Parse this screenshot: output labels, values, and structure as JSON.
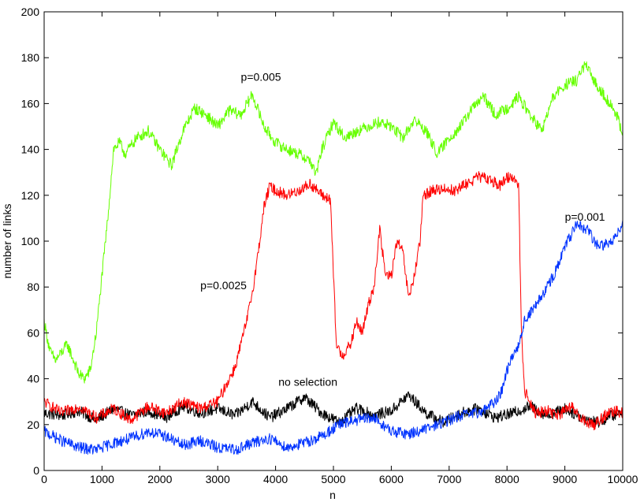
{
  "chart_data": {
    "type": "line",
    "title": "",
    "xlabel": "n",
    "ylabel": "number of links",
    "xlim": [
      0,
      10000
    ],
    "ylim": [
      0,
      200
    ],
    "xticks": [
      0,
      1000,
      2000,
      3000,
      4000,
      5000,
      6000,
      7000,
      8000,
      9000,
      10000
    ],
    "yticks": [
      0,
      20,
      40,
      60,
      80,
      100,
      120,
      140,
      160,
      180,
      200
    ],
    "grid": false,
    "legend": "none",
    "series": [
      {
        "name": "no selection",
        "color": "#000000",
        "points": [
          [
            0,
            25
          ],
          [
            300,
            24
          ],
          [
            600,
            26
          ],
          [
            900,
            22
          ],
          [
            1200,
            27
          ],
          [
            1500,
            24
          ],
          [
            1800,
            26
          ],
          [
            2100,
            23
          ],
          [
            2400,
            28
          ],
          [
            2700,
            25
          ],
          [
            3000,
            27
          ],
          [
            3300,
            24
          ],
          [
            3600,
            30
          ],
          [
            3900,
            23
          ],
          [
            4200,
            27
          ],
          [
            4500,
            32
          ],
          [
            4800,
            25
          ],
          [
            5100,
            21
          ],
          [
            5400,
            27
          ],
          [
            5700,
            24
          ],
          [
            6000,
            26
          ],
          [
            6300,
            33
          ],
          [
            6600,
            25
          ],
          [
            6900,
            21
          ],
          [
            7200,
            25
          ],
          [
            7500,
            27
          ],
          [
            7800,
            23
          ],
          [
            8100,
            25
          ],
          [
            8400,
            28
          ],
          [
            8700,
            24
          ],
          [
            9000,
            27
          ],
          [
            9300,
            23
          ],
          [
            9600,
            21
          ],
          [
            9800,
            24
          ],
          [
            10000,
            25
          ]
        ]
      },
      {
        "name": "p=0.005",
        "color": "#66ff00",
        "points": [
          [
            0,
            65
          ],
          [
            100,
            52
          ],
          [
            200,
            48
          ],
          [
            400,
            55
          ],
          [
            600,
            42
          ],
          [
            700,
            40
          ],
          [
            800,
            44
          ],
          [
            900,
            60
          ],
          [
            1000,
            85
          ],
          [
            1100,
            110
          ],
          [
            1200,
            140
          ],
          [
            1300,
            143
          ],
          [
            1400,
            138
          ],
          [
            1600,
            145
          ],
          [
            1800,
            148
          ],
          [
            2000,
            140
          ],
          [
            2200,
            133
          ],
          [
            2400,
            148
          ],
          [
            2600,
            158
          ],
          [
            2800,
            155
          ],
          [
            3000,
            150
          ],
          [
            3200,
            157
          ],
          [
            3400,
            155
          ],
          [
            3600,
            164
          ],
          [
            3800,
            150
          ],
          [
            4000,
            143
          ],
          [
            4200,
            140
          ],
          [
            4400,
            138
          ],
          [
            4600,
            135
          ],
          [
            4700,
            129
          ],
          [
            4800,
            140
          ],
          [
            5000,
            152
          ],
          [
            5200,
            145
          ],
          [
            5400,
            148
          ],
          [
            5600,
            150
          ],
          [
            5800,
            152
          ],
          [
            6000,
            150
          ],
          [
            6200,
            145
          ],
          [
            6400,
            153
          ],
          [
            6600,
            148
          ],
          [
            6800,
            138
          ],
          [
            7000,
            145
          ],
          [
            7200,
            150
          ],
          [
            7400,
            158
          ],
          [
            7600,
            163
          ],
          [
            7800,
            155
          ],
          [
            8000,
            158
          ],
          [
            8200,
            163
          ],
          [
            8400,
            155
          ],
          [
            8600,
            148
          ],
          [
            8800,
            163
          ],
          [
            9000,
            168
          ],
          [
            9200,
            170
          ],
          [
            9350,
            177
          ],
          [
            9500,
            170
          ],
          [
            9700,
            163
          ],
          [
            9900,
            155
          ],
          [
            10000,
            145
          ]
        ]
      },
      {
        "name": "p=0.0025",
        "color": "#ff0000",
        "points": [
          [
            0,
            30
          ],
          [
            300,
            25
          ],
          [
            600,
            28
          ],
          [
            900,
            23
          ],
          [
            1200,
            27
          ],
          [
            1500,
            22
          ],
          [
            1800,
            28
          ],
          [
            2100,
            25
          ],
          [
            2400,
            30
          ],
          [
            2700,
            27
          ],
          [
            3000,
            30
          ],
          [
            3100,
            35
          ],
          [
            3300,
            45
          ],
          [
            3500,
            65
          ],
          [
            3600,
            78
          ],
          [
            3700,
            95
          ],
          [
            3800,
            115
          ],
          [
            3900,
            124
          ],
          [
            4000,
            122
          ],
          [
            4200,
            120
          ],
          [
            4400,
            122
          ],
          [
            4600,
            125
          ],
          [
            4800,
            120
          ],
          [
            4950,
            118
          ],
          [
            5000,
            85
          ],
          [
            5050,
            55
          ],
          [
            5150,
            50
          ],
          [
            5300,
            55
          ],
          [
            5400,
            65
          ],
          [
            5500,
            60
          ],
          [
            5600,
            72
          ],
          [
            5700,
            80
          ],
          [
            5800,
            105
          ],
          [
            5900,
            85
          ],
          [
            6000,
            85
          ],
          [
            6100,
            100
          ],
          [
            6200,
            95
          ],
          [
            6300,
            75
          ],
          [
            6400,
            85
          ],
          [
            6500,
            100
          ],
          [
            6550,
            120
          ],
          [
            6700,
            122
          ],
          [
            6900,
            123
          ],
          [
            7100,
            122
          ],
          [
            7300,
            125
          ],
          [
            7500,
            128
          ],
          [
            7700,
            127
          ],
          [
            7900,
            124
          ],
          [
            8000,
            128
          ],
          [
            8100,
            128
          ],
          [
            8200,
            125
          ],
          [
            8250,
            60
          ],
          [
            8300,
            35
          ],
          [
            8500,
            25
          ],
          [
            8700,
            26
          ],
          [
            8900,
            24
          ],
          [
            9100,
            28
          ],
          [
            9300,
            22
          ],
          [
            9500,
            20
          ],
          [
            9700,
            24
          ],
          [
            9900,
            26
          ],
          [
            10000,
            25
          ]
        ]
      },
      {
        "name": "p=0.001",
        "color": "#0033ff",
        "points": [
          [
            0,
            17
          ],
          [
            300,
            13
          ],
          [
            600,
            10
          ],
          [
            900,
            9
          ],
          [
            1200,
            12
          ],
          [
            1500,
            14
          ],
          [
            1800,
            17
          ],
          [
            2100,
            15
          ],
          [
            2400,
            11
          ],
          [
            2700,
            13
          ],
          [
            3000,
            10
          ],
          [
            3300,
            9
          ],
          [
            3600,
            12
          ],
          [
            3900,
            14
          ],
          [
            4200,
            10
          ],
          [
            4500,
            12
          ],
          [
            4800,
            15
          ],
          [
            5100,
            20
          ],
          [
            5400,
            22
          ],
          [
            5700,
            23
          ],
          [
            6000,
            17
          ],
          [
            6300,
            16
          ],
          [
            6600,
            18
          ],
          [
            6900,
            21
          ],
          [
            7200,
            24
          ],
          [
            7500,
            25
          ],
          [
            7800,
            30
          ],
          [
            7900,
            34
          ],
          [
            8000,
            44
          ],
          [
            8100,
            50
          ],
          [
            8200,
            55
          ],
          [
            8300,
            65
          ],
          [
            8500,
            72
          ],
          [
            8700,
            80
          ],
          [
            8900,
            90
          ],
          [
            9000,
            98
          ],
          [
            9100,
            102
          ],
          [
            9200,
            107
          ],
          [
            9400,
            105
          ],
          [
            9500,
            100
          ],
          [
            9600,
            98
          ],
          [
            9800,
            99
          ],
          [
            9900,
            104
          ],
          [
            10000,
            108
          ]
        ]
      }
    ],
    "annotations": [
      {
        "text": "p=0.005",
        "x": 3400,
        "y": 170
      },
      {
        "text": "p=0.0025",
        "x": 2700,
        "y": 79
      },
      {
        "text": "p=0.001",
        "x": 9000,
        "y": 109
      },
      {
        "text": "no selection",
        "x": 4050,
        "y": 37
      }
    ]
  }
}
